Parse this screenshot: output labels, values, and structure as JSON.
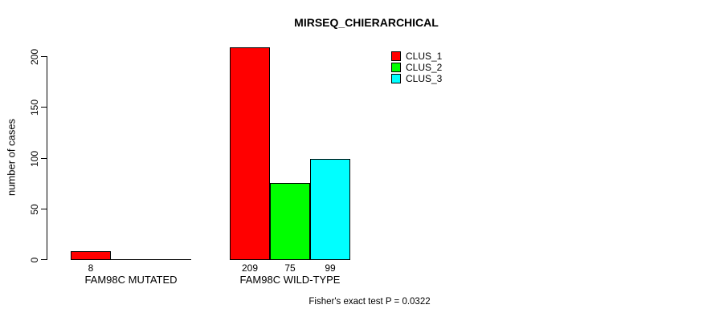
{
  "chart_data": {
    "type": "bar",
    "title": "MIRSEQ_CHIERARCHICAL",
    "ylabel": "number of cases",
    "xlabel": "",
    "yticks": [
      0,
      50,
      100,
      150,
      200
    ],
    "ylim": [
      0,
      209
    ],
    "grid": false,
    "categories": [
      "FAM98C MUTATED",
      "FAM98C WILD-TYPE"
    ],
    "series": [
      {
        "name": "CLUS_1",
        "color": "#ff0000",
        "values": [
          8,
          209
        ]
      },
      {
        "name": "CLUS_2",
        "color": "#00ff00",
        "values": [
          0,
          75
        ]
      },
      {
        "name": "CLUS_3",
        "color": "#00ffff",
        "values": [
          0,
          99
        ]
      }
    ],
    "bar_value_labels": [
      [
        "8",
        "",
        ""
      ],
      [
        "209",
        "75",
        "99"
      ]
    ],
    "legend_position": "top-right",
    "legend_entries": [
      "CLUS_1",
      "CLUS_2",
      "CLUS_3"
    ],
    "footnote": "Fisher's exact test P = 0.0322"
  }
}
